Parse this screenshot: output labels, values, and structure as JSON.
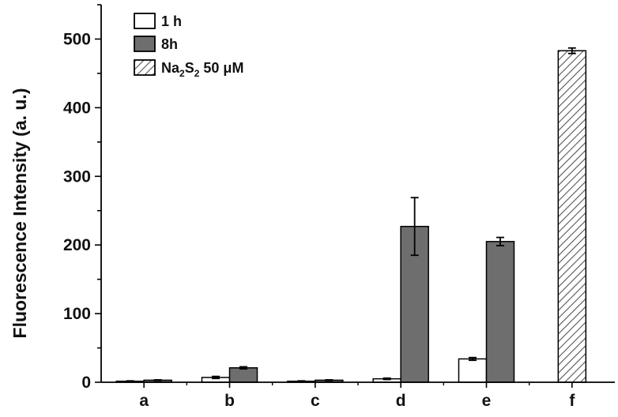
{
  "chart_data": {
    "type": "bar",
    "ylabel": "Fluorescence Intensity (a. u.)",
    "xlabel": "",
    "ylim": [
      0,
      550
    ],
    "yticks": [
      0,
      100,
      200,
      300,
      400,
      500
    ],
    "categories": [
      "a",
      "b",
      "c",
      "d",
      "e",
      "f"
    ],
    "legend_position": "top-left",
    "series": [
      {
        "name": "1 h",
        "fill": "#ffffff",
        "pattern": "none",
        "values": [
          1.5,
          7,
          1.5,
          5,
          34,
          null
        ],
        "errors": [
          0.5,
          1.5,
          0.5,
          1,
          2,
          null
        ]
      },
      {
        "name": "8h",
        "fill": "#6e6e6e",
        "pattern": "none",
        "values": [
          3,
          21,
          3,
          227,
          205,
          null
        ],
        "errors": [
          0.5,
          1.5,
          0.5,
          42,
          6,
          null
        ]
      },
      {
        "name": "Na2S2 50 μM",
        "label_parts": {
          "t1": "Na",
          "s1": "2",
          "t2": "S",
          "s2": "2",
          "t3": " 50 μM"
        },
        "fill": "#ffffff",
        "pattern": "diagonal-hatch",
        "values": [
          null,
          null,
          null,
          null,
          null,
          483
        ],
        "errors": [
          null,
          null,
          null,
          null,
          null,
          4
        ]
      }
    ]
  }
}
